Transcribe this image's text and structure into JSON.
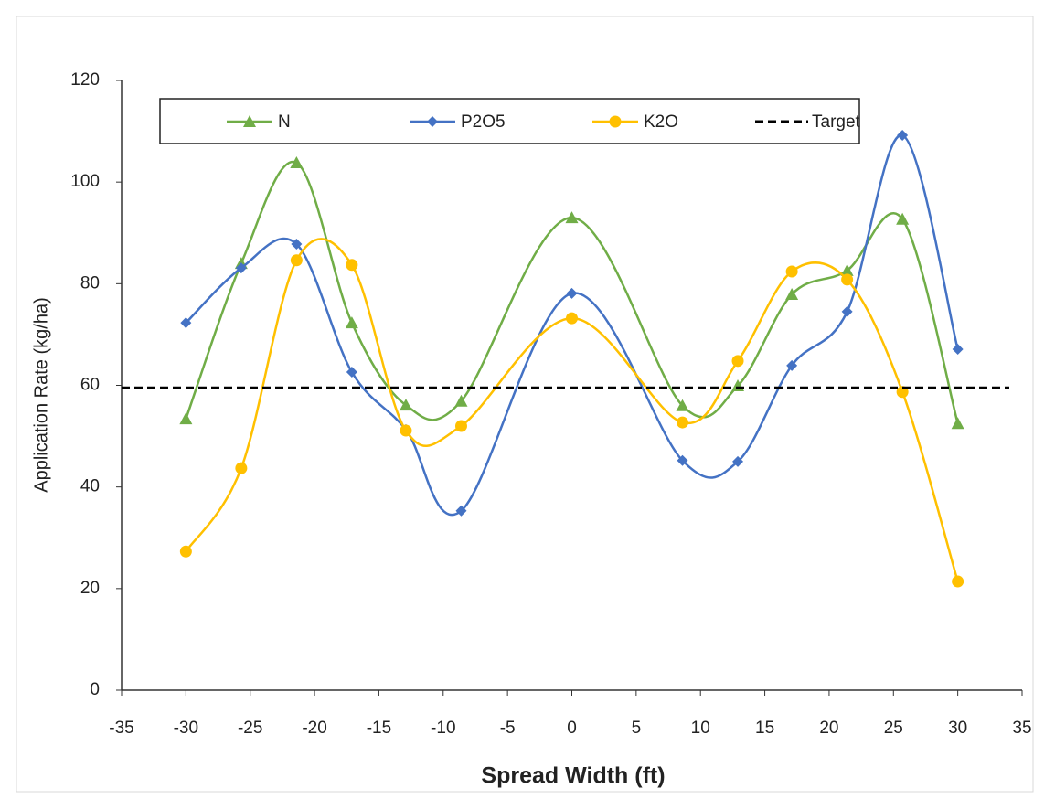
{
  "chart_data": {
    "type": "line",
    "x_label": "Spread Width (ft)",
    "y_label": "Application Rate (kg/ha)",
    "x": [
      -30,
      -25.7,
      -21.4,
      -17.1,
      -12.9,
      -8.6,
      0,
      8.6,
      12.9,
      17.1,
      21.4,
      25.7,
      30
    ],
    "series": [
      {
        "name": "N",
        "color": "#70ad47",
        "marker": "triangle",
        "values": [
          53.4,
          84,
          103.8,
          72.3,
          56.1,
          56.9,
          93,
          56,
          59.9,
          77.9,
          82.6,
          92.7,
          52.5
        ]
      },
      {
        "name": "P2O5",
        "color": "#4472c4",
        "marker": "diamond",
        "values": [
          72.3,
          83.1,
          87.8,
          62.6,
          51.3,
          35.3,
          78.1,
          45.2,
          45,
          63.9,
          74.5,
          109.2,
          67.1
        ]
      },
      {
        "name": "K2O",
        "color": "#ffc000",
        "marker": "circle",
        "values": [
          27.3,
          43.7,
          84.6,
          83.7,
          51.1,
          52,
          73.2,
          52.7,
          64.8,
          82.4,
          80.8,
          58.7,
          21.4
        ]
      }
    ],
    "target": {
      "name": "Target",
      "value": 59.5,
      "color": "#000000"
    },
    "smooth": true,
    "xlim": [
      -35,
      35
    ],
    "xticks": [
      -35,
      -30,
      -25,
      -20,
      -15,
      -10,
      -5,
      0,
      5,
      10,
      15,
      20,
      25,
      30,
      35
    ],
    "ylim": [
      0,
      120
    ],
    "yticks": [
      0,
      20,
      40,
      60,
      80,
      100,
      120
    ],
    "grid": false,
    "legend": "upper center"
  }
}
